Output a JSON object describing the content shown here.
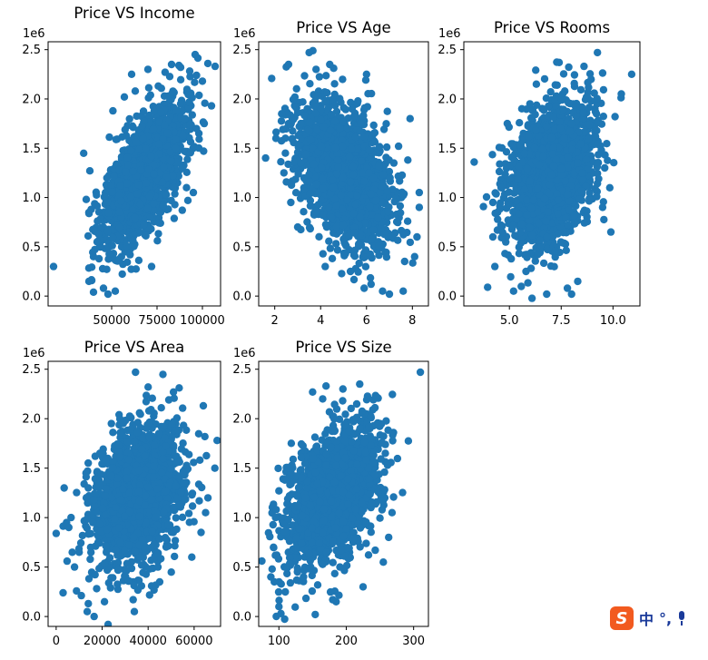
{
  "chart_data": [
    {
      "type": "scatter",
      "title": "Price VS Income",
      "y_offset_label": "1e6",
      "xlim": [
        15000,
        110000
      ],
      "ylim": [
        -0.1,
        2.58
      ],
      "xticks": [
        50000,
        75000,
        100000
      ],
      "xtick_labels": [
        "50000",
        "75000",
        "100000"
      ],
      "yticks": [
        0.0,
        0.5,
        1.0,
        1.5,
        2.0,
        2.5
      ],
      "ytick_labels": [
        "0.0",
        "0.5",
        "1.0",
        "1.5",
        "2.0",
        "2.5"
      ],
      "color": "#1f77b4",
      "center": [
        68000,
        1.23
      ],
      "spread": [
        10800,
        0.35
      ],
      "corr": 0.64,
      "n_points": 1800,
      "seed": 11,
      "points": [
        [
          18000,
          0.3
        ],
        [
          37500,
          0.15
        ],
        [
          40000,
          0.04
        ],
        [
          48000,
          0.02
        ],
        [
          45500,
          0.08
        ],
        [
          96000,
          2.45
        ],
        [
          107000,
          2.33
        ],
        [
          103000,
          2.36
        ],
        [
          100000,
          2.18
        ],
        [
          101000,
          1.75
        ],
        [
          92000,
          0.97
        ],
        [
          36000,
          0.98
        ],
        [
          38000,
          1.27
        ],
        [
          57000,
          2.02
        ],
        [
          63000,
          2.08
        ],
        [
          83000,
          2.35
        ],
        [
          88000,
          2.32
        ],
        [
          72000,
          0.3
        ],
        [
          52000,
          0.05
        ],
        [
          61000,
          2.25
        ],
        [
          95000,
          1.05
        ],
        [
          42000,
          0.55
        ],
        [
          40000,
          0.4
        ],
        [
          105000,
          1.93
        ],
        [
          70000,
          2.3
        ]
      ]
    },
    {
      "type": "scatter",
      "title": "Price VS Age",
      "y_offset_label": "1e6",
      "xlim": [
        1.3,
        8.7
      ],
      "ylim": [
        -0.1,
        2.58
      ],
      "xticks": [
        2,
        4,
        6,
        8
      ],
      "xtick_labels": [
        "2",
        "4",
        "6",
        "8"
      ],
      "yticks": [
        0.0,
        0.5,
        1.0,
        1.5,
        2.0,
        2.5
      ],
      "ytick_labels": [
        "0.0",
        "0.5",
        "1.0",
        "1.5",
        "2.0",
        "2.5"
      ],
      "color": "#1f77b4",
      "center": [
        5.0,
        1.23
      ],
      "spread": [
        1.0,
        0.35
      ],
      "corr": -0.45,
      "n_points": 1800,
      "seed": 23,
      "points": [
        [
          1.6,
          1.4
        ],
        [
          2.05,
          1.6
        ],
        [
          2.3,
          1.85
        ],
        [
          2.6,
          2.35
        ],
        [
          3.5,
          2.47
        ],
        [
          7.9,
          1.8
        ],
        [
          8.2,
          0.6
        ],
        [
          8.1,
          0.4
        ],
        [
          8.3,
          0.9
        ],
        [
          7.6,
          0.05
        ],
        [
          7.0,
          0.02
        ],
        [
          6.7,
          0.05
        ],
        [
          5.9,
          0.08
        ],
        [
          6.2,
          0.12
        ],
        [
          4.2,
          0.3
        ],
        [
          2.7,
          0.95
        ],
        [
          3.0,
          0.7
        ],
        [
          7.4,
          1.52
        ],
        [
          7.8,
          1.38
        ],
        [
          8.3,
          1.05
        ],
        [
          6.0,
          2.25
        ],
        [
          4.4,
          2.35
        ],
        [
          3.8,
          2.3
        ],
        [
          5.3,
          0.25
        ],
        [
          2.4,
          1.25
        ]
      ]
    },
    {
      "type": "scatter",
      "title": "Price VS Rooms",
      "y_offset_label": "1e6",
      "xlim": [
        2.8,
        11.3
      ],
      "ylim": [
        -0.1,
        2.58
      ],
      "xticks": [
        5.0,
        7.5,
        10.0
      ],
      "xtick_labels": [
        "5.0",
        "7.5",
        "10.0"
      ],
      "yticks": [
        0.0,
        0.5,
        1.0,
        1.5,
        2.0,
        2.5
      ],
      "ytick_labels": [
        "0.0",
        "0.5",
        "1.0",
        "1.5",
        "2.0",
        "2.5"
      ],
      "color": "#1f77b4",
      "center": [
        7.0,
        1.23
      ],
      "spread": [
        1.0,
        0.35
      ],
      "corr": 0.33,
      "n_points": 1800,
      "seed": 37,
      "points": [
        [
          3.3,
          1.36
        ],
        [
          3.95,
          0.09
        ],
        [
          6.8,
          0.02
        ],
        [
          8.0,
          0.02
        ],
        [
          9.25,
          2.47
        ],
        [
          10.9,
          2.25
        ],
        [
          10.4,
          2.05
        ],
        [
          10.1,
          1.82
        ],
        [
          9.5,
          0.9
        ],
        [
          9.9,
          0.65
        ],
        [
          8.3,
          0.15
        ],
        [
          7.8,
          0.08
        ],
        [
          4.2,
          0.6
        ],
        [
          4.3,
          0.3
        ],
        [
          5.2,
          0.05
        ],
        [
          4.9,
          1.75
        ],
        [
          5.6,
          1.9
        ],
        [
          7.4,
          2.37
        ],
        [
          8.6,
          2.33
        ],
        [
          6.3,
          2.15
        ],
        [
          9.6,
          1.3
        ],
        [
          4.6,
          1.1
        ],
        [
          4.2,
          0.95
        ],
        [
          9.2,
          1.85
        ],
        [
          5.8,
          0.25
        ]
      ]
    },
    {
      "type": "scatter",
      "title": "Price VS Area",
      "y_offset_label": "1e6",
      "xlim": [
        -3500,
        71500
      ],
      "ylim": [
        -0.1,
        2.58
      ],
      "xticks": [
        0,
        20000,
        40000,
        60000
      ],
      "xtick_labels": [
        "0",
        "20000",
        "40000",
        "60000"
      ],
      "yticks": [
        0.0,
        0.5,
        1.0,
        1.5,
        2.0,
        2.5
      ],
      "ytick_labels": [
        "0.0",
        "0.5",
        "1.0",
        "1.5",
        "2.0",
        "2.5"
      ],
      "color": "#1f77b4",
      "center": [
        36000,
        1.23
      ],
      "spread": [
        9500,
        0.35
      ],
      "corr": 0.34,
      "n_points": 1800,
      "seed": 53,
      "points": [
        [
          0,
          0.84
        ],
        [
          3000,
          0.24
        ],
        [
          3500,
          1.3
        ],
        [
          4500,
          0.95
        ],
        [
          5500,
          0.9
        ],
        [
          6500,
          1.0
        ],
        [
          8000,
          0.5
        ],
        [
          7000,
          0.65
        ],
        [
          10000,
          0.65
        ],
        [
          13500,
          0.05
        ],
        [
          16500,
          0.0
        ],
        [
          14000,
          0.13
        ],
        [
          21000,
          0.15
        ],
        [
          34000,
          0.05
        ],
        [
          33500,
          0.17
        ],
        [
          34500,
          2.47
        ],
        [
          40000,
          2.32
        ],
        [
          51000,
          2.27
        ],
        [
          64000,
          2.13
        ],
        [
          70000,
          1.78
        ],
        [
          69000,
          1.5
        ],
        [
          66000,
          1.2
        ],
        [
          65000,
          1.05
        ],
        [
          63000,
          0.85
        ],
        [
          59000,
          0.6
        ],
        [
          17000,
          1.62
        ],
        [
          19000,
          1.65
        ],
        [
          24000,
          1.95
        ],
        [
          45000,
          0.35
        ],
        [
          14000,
          1.3
        ]
      ]
    },
    {
      "type": "scatter",
      "title": "Price VS Size",
      "y_offset_label": "1e6",
      "xlim": [
        70,
        322
      ],
      "ylim": [
        -0.1,
        2.58
      ],
      "xticks": [
        100,
        200,
        300
      ],
      "xtick_labels": [
        "100",
        "200",
        "300"
      ],
      "yticks": [
        0.0,
        0.5,
        1.0,
        1.5,
        2.0,
        2.5
      ],
      "ytick_labels": [
        "0.0",
        "0.5",
        "1.0",
        "1.5",
        "2.0",
        "2.5"
      ],
      "color": "#1f77b4",
      "center": [
        180,
        1.23
      ],
      "spread": [
        33,
        0.35
      ],
      "corr": 0.45,
      "n_points": 1800,
      "seed": 71,
      "points": [
        [
          310,
          2.47
        ],
        [
          88,
          0.4
        ],
        [
          90,
          0.48
        ],
        [
          100,
          0.1
        ],
        [
          103,
          0.03
        ],
        [
          154,
          0.02
        ],
        [
          185,
          0.15
        ],
        [
          180,
          0.17
        ],
        [
          96,
          1.08
        ],
        [
          95,
          1.0
        ],
        [
          100,
          1.27
        ],
        [
          92,
          0.7
        ],
        [
          195,
          2.3
        ],
        [
          220,
          2.35
        ],
        [
          245,
          2.22
        ],
        [
          250,
          1.95
        ],
        [
          268,
          1.05
        ],
        [
          263,
          0.8
        ],
        [
          255,
          0.55
        ],
        [
          243,
          0.67
        ],
        [
          150,
          2.27
        ],
        [
          165,
          2.2
        ],
        [
          170,
          2.33
        ],
        [
          258,
          1.65
        ],
        [
          225,
          0.3
        ]
      ]
    }
  ],
  "ime_bar": {
    "logo_glyph": "S",
    "mode_text": "中",
    "punct_text": "°,"
  }
}
